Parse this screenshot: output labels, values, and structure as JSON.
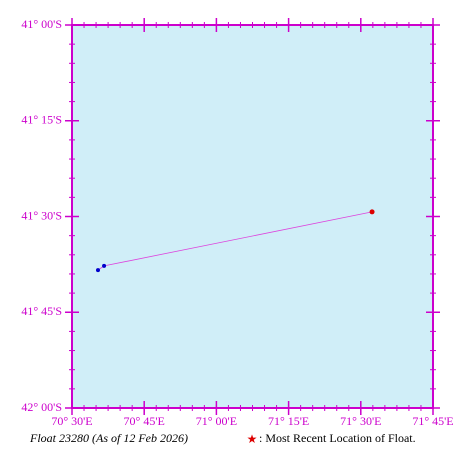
{
  "chart_data": {
    "type": "line",
    "title": "Float 23280 (As of 12 Feb 2026)",
    "legend_text": ": Most Recent Location of Float.",
    "x": [
      70.59,
      70.611,
      71.539
    ],
    "series": [
      {
        "name": "Float 23280",
        "color": "#dd44dd",
        "point_color": "#0000cc",
        "latest_color": "#dd0000",
        "values": [
          -41.64,
          -41.629,
          -41.488
        ]
      }
    ],
    "xlim": [
      70.5,
      71.75
    ],
    "xticks": [
      {
        "value": 70.5,
        "label": "70° 30'E"
      },
      {
        "value": 70.75,
        "label": "70° 45'E"
      },
      {
        "value": 71.0,
        "label": "71° 00'E"
      },
      {
        "value": 71.25,
        "label": "71° 15'E"
      },
      {
        "value": 71.5,
        "label": "71° 30'E"
      },
      {
        "value": 71.75,
        "label": "71° 45'E"
      }
    ],
    "ylim": [
      -42.0,
      -41.0
    ],
    "yticks": [
      {
        "value": -41.0,
        "label": "41° 00'S"
      },
      {
        "value": -41.25,
        "label": "41° 15'S"
      },
      {
        "value": -41.5,
        "label": "41° 30'S"
      },
      {
        "value": -41.75,
        "label": "41° 45'S"
      },
      {
        "value": -42.0,
        "label": "42° 00'S"
      }
    ],
    "background": "#d0eef8",
    "frame_color": "#cc00cc"
  }
}
